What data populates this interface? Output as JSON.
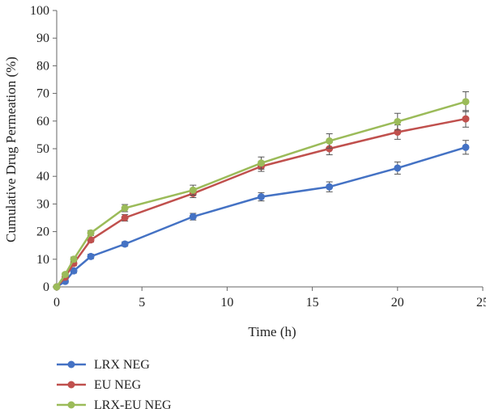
{
  "chart_data": {
    "type": "line",
    "title": "",
    "xlabel": "Time (h)",
    "ylabel": "Cumulative Drug Permeation (%)",
    "xlim": [
      0,
      25
    ],
    "ylim": [
      0,
      100
    ],
    "xticks": [
      0,
      5,
      10,
      15,
      20,
      25
    ],
    "yticks": [
      0,
      10,
      20,
      30,
      40,
      50,
      60,
      70,
      80,
      90,
      100
    ],
    "grid": false,
    "legend_position": "bottom-left",
    "x": [
      0,
      0.5,
      1,
      2,
      4,
      8,
      12,
      16,
      20,
      24
    ],
    "series": [
      {
        "name": "LRX NEG",
        "color": "#4472c4",
        "values": [
          0,
          2,
          5.8,
          11,
          15.5,
          25.4,
          32.6,
          36.2,
          43,
          50.5
        ],
        "errors": [
          0.3,
          0.6,
          0.8,
          0.8,
          0.8,
          1.2,
          1.5,
          1.8,
          2.2,
          2.5
        ]
      },
      {
        "name": "EU NEG",
        "color": "#c0504d",
        "values": [
          0,
          3.5,
          8.5,
          17,
          25,
          33.8,
          43.6,
          50,
          56,
          60.8
        ],
        "errors": [
          0.3,
          0.6,
          0.8,
          0.8,
          1.2,
          1.5,
          1.8,
          2.2,
          2.6,
          3.0
        ]
      },
      {
        "name": "LRX-EU NEG",
        "color": "#9bbb59",
        "values": [
          0,
          4.5,
          10,
          19.5,
          28.5,
          35,
          44.8,
          52.8,
          59.8,
          67
        ],
        "errors": [
          0.3,
          0.6,
          0.8,
          0.9,
          1.3,
          1.8,
          2.2,
          2.6,
          3.0,
          3.6
        ]
      }
    ]
  }
}
